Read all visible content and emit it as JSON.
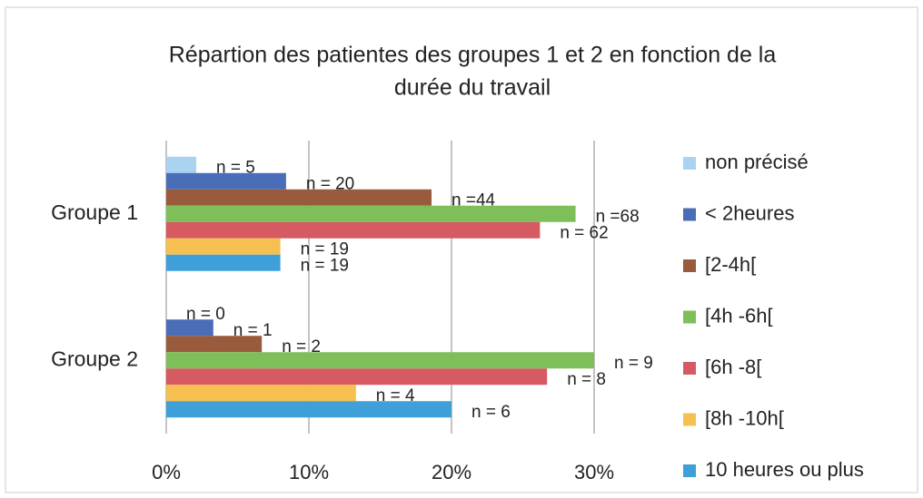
{
  "chart_data": {
    "type": "hbar",
    "title": [
      "Répartion des patientes des groupes 1 et 2 en fonction de la",
      "durée du travail"
    ],
    "categories": [
      "Groupe 1",
      "Groupe 2"
    ],
    "series": [
      {
        "name": "non précisé",
        "color": "#a9d3f0",
        "values": [
          2.1,
          0
        ],
        "labels": [
          "n = 5",
          "n = 0"
        ]
      },
      {
        "name": "< 2heures",
        "color": "#4a6db8",
        "values": [
          8.4,
          3.3
        ],
        "labels": [
          "n = 20",
          "n = 1"
        ]
      },
      {
        "name": "[2-4h[",
        "color": "#9a5a3c",
        "values": [
          18.6,
          6.7
        ],
        "labels": [
          "n =44",
          "n = 2"
        ]
      },
      {
        "name": "[4h -6h[",
        "color": "#7fbf5a",
        "values": [
          28.7,
          30
        ],
        "labels": [
          "n =68",
          "n = 9"
        ]
      },
      {
        "name": "[6h -8[",
        "color": "#d65a62",
        "values": [
          26.2,
          26.7
        ],
        "labels": [
          "n = 62",
          "n = 8"
        ]
      },
      {
        "name": "[8h -10h[",
        "color": "#f6c050",
        "values": [
          8.0,
          13.3
        ],
        "labels": [
          "n = 19",
          "n = 4"
        ]
      },
      {
        "name": "10 heures ou plus",
        "color": "#3f9fd8",
        "values": [
          8.0,
          20
        ],
        "labels": [
          "n = 19",
          "n = 6"
        ]
      }
    ],
    "xlim": [
      0,
      30
    ],
    "xticks": [
      {
        "value": 0,
        "label": "0%"
      },
      {
        "value": 10,
        "label": "10%"
      },
      {
        "value": 20,
        "label": "20%"
      },
      {
        "value": 30,
        "label": "30%"
      }
    ],
    "grid": true,
    "legend": "right"
  }
}
